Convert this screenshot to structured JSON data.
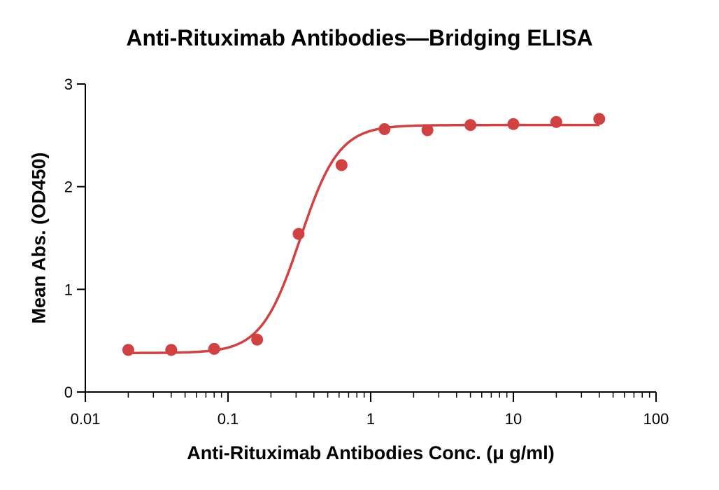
{
  "chart_data": {
    "type": "scatter",
    "title": "Anti-Rituximab  Antibodies—Bridging ELISA",
    "xlabel": "Anti-Rituximab  Antibodies Conc. (μ g/ml)",
    "ylabel": "Mean Abs. (OD450)",
    "x_scale": "log",
    "xlim": [
      0.01,
      100
    ],
    "ylim": [
      0,
      3
    ],
    "x_ticks": [
      "0.01",
      "0.1",
      "1",
      "10",
      "100"
    ],
    "y_ticks": [
      "0",
      "1",
      "2",
      "3"
    ],
    "grid": false,
    "legend": "none",
    "color": "#d04141",
    "series": [
      {
        "x": [
          0.02,
          0.04,
          0.08,
          0.16,
          0.3125,
          0.625,
          1.25,
          2.5,
          5,
          10,
          20,
          40
        ],
        "y": [
          0.41,
          0.41,
          0.42,
          0.51,
          1.54,
          2.21,
          2.56,
          2.55,
          2.6,
          2.61,
          2.63,
          2.66
        ]
      }
    ],
    "fit": {
      "model": "4PL",
      "bottom": 0.38,
      "top": 2.6,
      "ec50": 0.32,
      "hill": 3.2
    }
  }
}
